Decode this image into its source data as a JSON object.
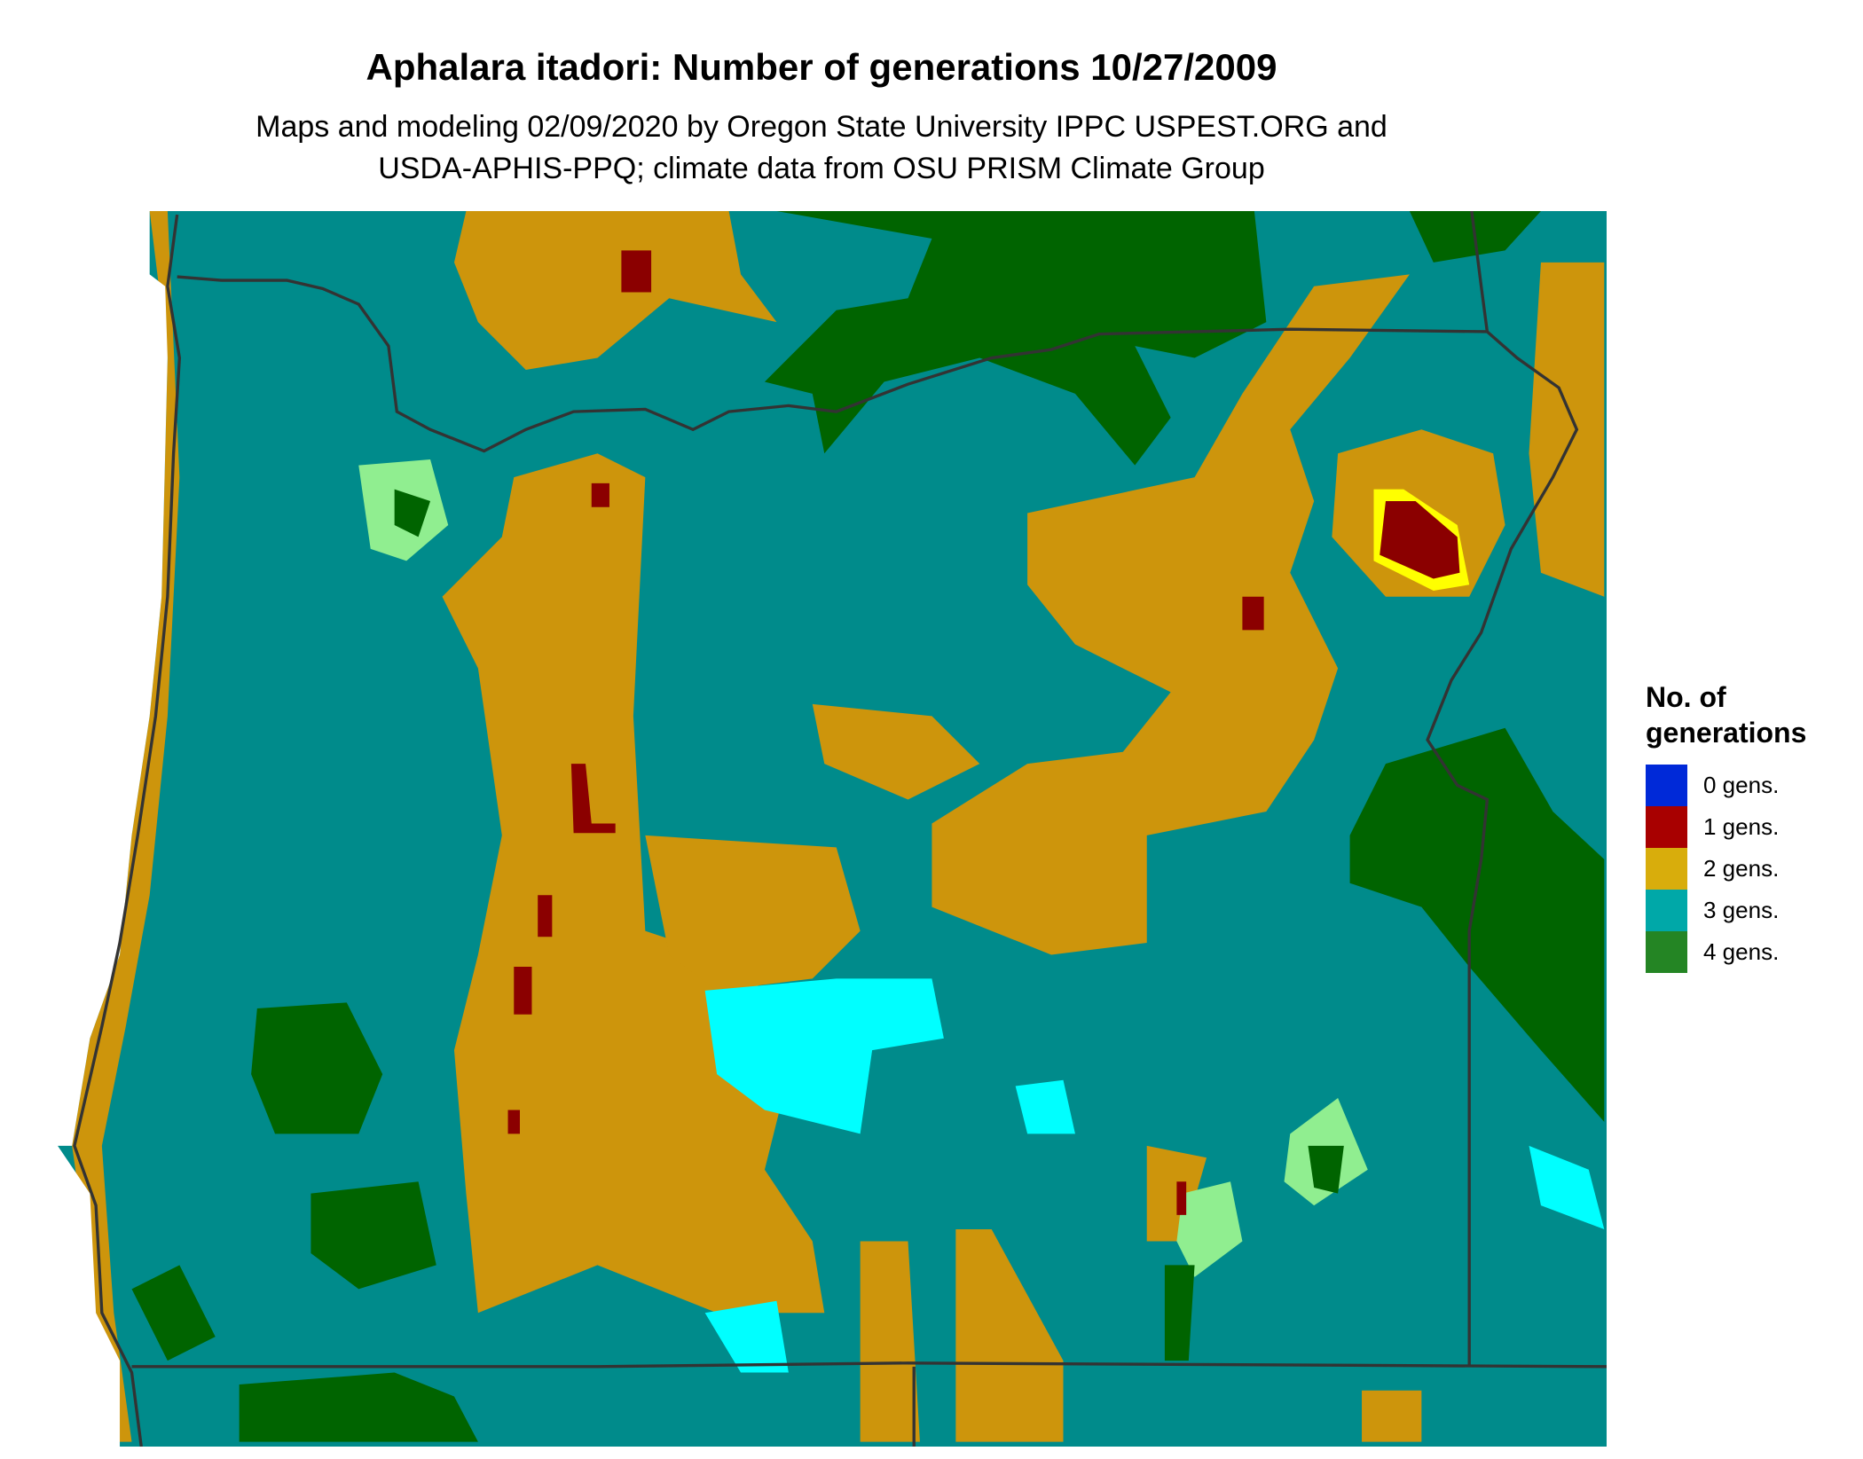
{
  "title": "Aphalara itadori: Number of generations 10/27/2009",
  "subtitle": [
    "Maps and modeling 02/09/2020 by Oregon State University IPPC USPEST.ORG and",
    "USDA-APHIS-PPQ; climate data from OSU PRISM Climate Group"
  ],
  "legend": {
    "title_line1": "No. of",
    "title_line2": "generations",
    "items": [
      {
        "label": "0 gens.",
        "color": "#0029D8"
      },
      {
        "label": "1 gens.",
        "color": "#A80000"
      },
      {
        "label": "2 gens.",
        "color": "#D8AD0C"
      },
      {
        "label": "3 gens.",
        "color": "#00A8A8"
      },
      {
        "label": "4 gens.",
        "color": "#248524"
      }
    ]
  },
  "map_colors": {
    "three_gens": "#008B8B",
    "two_gens": "#CD950C",
    "four_gens": "#006400",
    "one_gens": "#8B0000",
    "transition_cyan": "#00FFFF",
    "transition_light_green": "#90EE90",
    "transition_yellow": "#FFFF00",
    "borders": "#333333"
  }
}
